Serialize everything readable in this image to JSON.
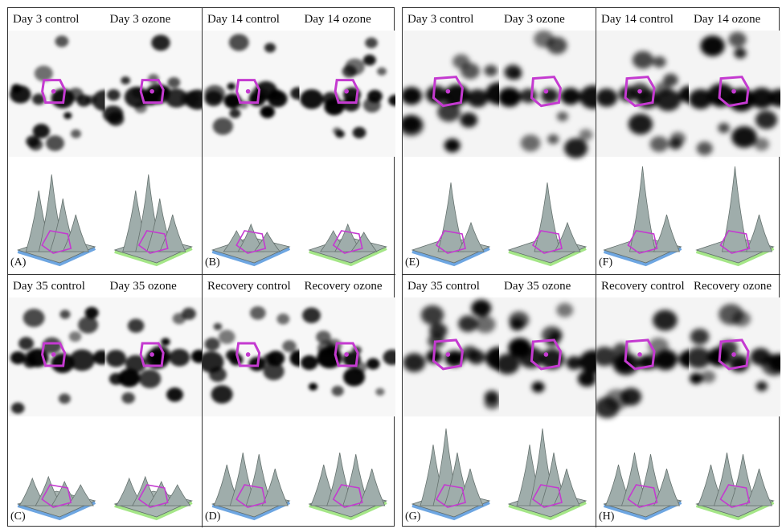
{
  "groups": [
    {
      "id": "left"
    },
    {
      "id": "right"
    }
  ],
  "panels": [
    {
      "letter": "(A)",
      "labels": [
        "Day 3 control",
        "Day 3 ozone"
      ],
      "style": "lowres",
      "shape": "tall",
      "tint": [
        "#4a90d9",
        "#8ee06a"
      ]
    },
    {
      "letter": "(B)",
      "labels": [
        "Day 14 control",
        "Day 14 ozone"
      ],
      "style": "lowres",
      "shape": "flat",
      "tint": [
        "#4a90d9",
        "#8ee06a"
      ]
    },
    {
      "letter": "(C)",
      "labels": [
        "Day 35 control",
        "Day 35 ozone"
      ],
      "style": "lowres",
      "shape": "low",
      "tint": [
        "#4a90d9",
        "#8ee06a"
      ]
    },
    {
      "letter": "(D)",
      "labels": [
        "Recovery control",
        "Recovery ozone"
      ],
      "style": "lowres",
      "shape": "multi",
      "tint": [
        "#4a90d9",
        "#8ee06a"
      ]
    },
    {
      "letter": "(E)",
      "labels": [
        "Day 3 control",
        "Day 3 ozone"
      ],
      "style": "hires",
      "shape": "single",
      "tint": [
        "#4a90d9",
        "#8ee06a"
      ]
    },
    {
      "letter": "(F)",
      "labels": [
        "Day 14 control",
        "Day 14 ozone"
      ],
      "style": "hires",
      "shape": "bigsingle",
      "tint": [
        "#4a90d9",
        "#8ee06a"
      ]
    },
    {
      "letter": "(G)",
      "labels": [
        "Day 35 control",
        "Day 35 ozone"
      ],
      "style": "hires",
      "shape": "tall",
      "tint": [
        "#4a90d9",
        "#8ee06a"
      ]
    },
    {
      "letter": "(H)",
      "labels": [
        "Recovery control",
        "Recovery ozone"
      ],
      "style": "hires",
      "shape": "multi",
      "tint": [
        "#4a90d9",
        "#8ee06a"
      ]
    }
  ],
  "colors": {
    "outline": "#c43ad0",
    "surface": "#9aa8a6",
    "spot": "#000000"
  }
}
